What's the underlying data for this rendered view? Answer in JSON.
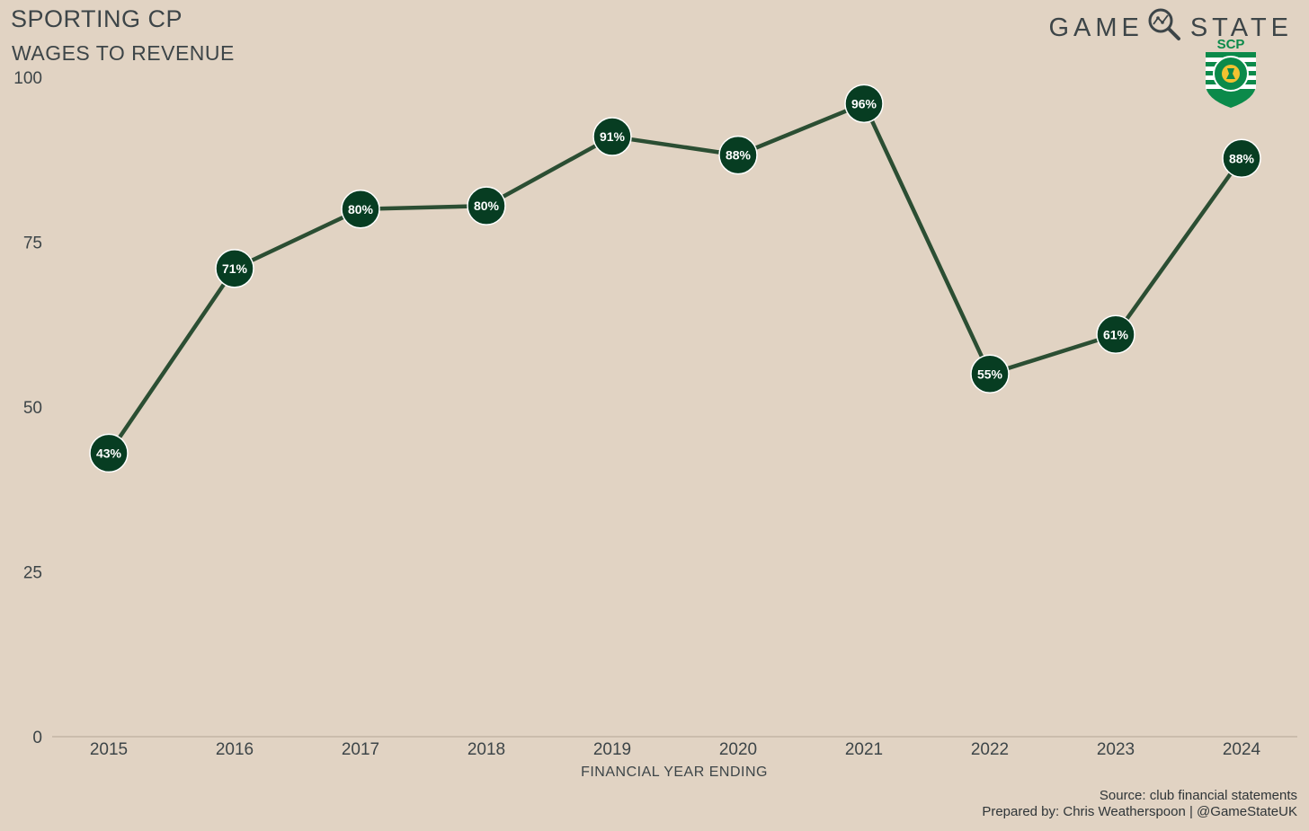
{
  "header": {
    "title": "SPORTING CP",
    "subtitle": "WAGES TO REVENUE",
    "brand_left": "GAME",
    "brand_right": "STATE",
    "crest_text": "SCP"
  },
  "footer": {
    "source": "Source: club financial statements",
    "prepared_by": "Prepared by: Chris Weatherspoon | @GameStateUK"
  },
  "colors": {
    "background": "#e1d3c3",
    "line": "#2b4e33",
    "marker": "#073d22",
    "marker_outline": "#ffffff",
    "text": "#3d4548"
  },
  "chart_data": {
    "type": "line",
    "title": "SPORTING CP",
    "subtitle": "WAGES TO REVENUE",
    "xlabel": "FINANCIAL YEAR ENDING",
    "ylabel": "",
    "x": [
      "2015",
      "2016",
      "2017",
      "2018",
      "2019",
      "2020",
      "2021",
      "2022",
      "2023",
      "2024"
    ],
    "series": [
      {
        "values": [
          43,
          71,
          80,
          80.5,
          91,
          88.2,
          96,
          55,
          61,
          87.7
        ],
        "labels": [
          "43%",
          "71%",
          "80%",
          "80%",
          "91%",
          "88%",
          "96%",
          "55%",
          "61%",
          "88%"
        ]
      }
    ],
    "ylim": [
      0,
      100
    ],
    "yticks": [
      0,
      25,
      50,
      75,
      100
    ],
    "grid": false,
    "legend": "none"
  }
}
